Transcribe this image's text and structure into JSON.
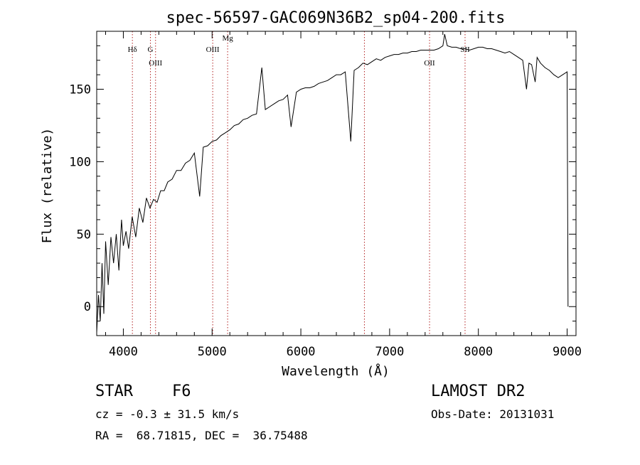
{
  "chart_data": {
    "type": "line",
    "title": "spec-56597-GAC069N36B2_sp04-200.fits",
    "xlabel": "Wavelength (Å)",
    "ylabel": "Flux (relative)",
    "xlim": [
      3700,
      9100
    ],
    "ylim": [
      -20,
      190
    ],
    "xticks": [
      4000,
      5000,
      6000,
      7000,
      8000,
      9000
    ],
    "xtick_labels": [
      "4000",
      "5000",
      "6000",
      "7000",
      "8000",
      "9000"
    ],
    "yticks": [
      0,
      50,
      100,
      150
    ],
    "ytick_labels": [
      "0",
      "50",
      "100",
      "150"
    ],
    "grid": false,
    "line_color": "#000000",
    "marker_color": "#b22222",
    "series": [
      {
        "x": [
          3700,
          3720,
          3740,
          3760,
          3780,
          3800,
          3830,
          3860,
          3890,
          3920,
          3950,
          3980,
          4000,
          4030,
          4060,
          4100,
          4140,
          4180,
          4220,
          4260,
          4300,
          4340,
          4380,
          4420,
          4460,
          4500,
          4550,
          4600,
          4650,
          4700,
          4750,
          4800,
          4860,
          4900,
          4950,
          5000,
          5050,
          5100,
          5150,
          5200,
          5250,
          5300,
          5350,
          5400,
          5450,
          5500,
          5560,
          5600,
          5650,
          5700,
          5750,
          5800,
          5850,
          5890,
          5950,
          6000,
          6050,
          6100,
          6150,
          6200,
          6250,
          6300,
          6350,
          6400,
          6450,
          6500,
          6563,
          6600,
          6650,
          6700,
          6750,
          6800,
          6850,
          6900,
          6950,
          7000,
          7050,
          7100,
          7150,
          7200,
          7250,
          7300,
          7350,
          7400,
          7450,
          7500,
          7550,
          7600,
          7620,
          7650,
          7700,
          7750,
          7800,
          7850,
          7900,
          7950,
          8000,
          8050,
          8100,
          8150,
          8200,
          8250,
          8300,
          8350,
          8400,
          8450,
          8500,
          8542,
          8570,
          8600,
          8640,
          8662,
          8700,
          8750,
          8800,
          8850,
          8900,
          8950,
          9000,
          9010
        ],
        "y": [
          -18,
          8,
          -10,
          30,
          -5,
          45,
          15,
          48,
          30,
          50,
          25,
          60,
          42,
          52,
          40,
          62,
          48,
          68,
          58,
          75,
          68,
          74,
          72,
          80,
          80,
          86,
          88,
          94,
          94,
          99,
          101,
          106,
          76,
          110,
          111,
          114,
          115,
          118,
          120,
          122,
          125,
          126,
          129,
          130,
          132,
          133,
          165,
          136,
          138,
          140,
          142,
          143,
          146,
          124,
          148,
          150,
          151,
          151,
          152,
          154,
          155,
          156,
          158,
          160,
          160,
          162,
          114,
          163,
          165,
          168,
          167,
          169,
          171,
          170,
          172,
          173,
          174,
          174,
          175,
          175,
          176,
          176,
          177,
          177,
          177,
          177,
          178,
          180,
          188,
          180,
          179,
          179,
          178,
          178,
          177,
          178,
          179,
          179,
          178,
          178,
          177,
          176,
          175,
          176,
          174,
          172,
          170,
          150,
          168,
          167,
          155,
          172,
          168,
          165,
          163,
          160,
          158,
          160,
          162,
          0
        ]
      }
    ],
    "line_markers": [
      {
        "label": "Hδ",
        "x": 4102
      },
      {
        "label": "G",
        "x": 4305
      },
      {
        "label": "OIII",
        "x": 4363
      },
      {
        "label": "OIII",
        "x": 5007
      },
      {
        "label": "Mg",
        "x": 5175
      },
      {
        "label": "",
        "x": 6716
      },
      {
        "label": "OII",
        "x": 7450
      },
      {
        "label": "SII",
        "x": 7850
      }
    ]
  },
  "info": {
    "object_class": "STAR",
    "subclass": "F6",
    "survey": "LAMOST DR2",
    "redshift": "cz = -0.3 ± 31.5 km/s",
    "obs_date": "Obs-Date: 20131031",
    "coordinates": "RA =  68.71815, DEC =  36.75488"
  }
}
